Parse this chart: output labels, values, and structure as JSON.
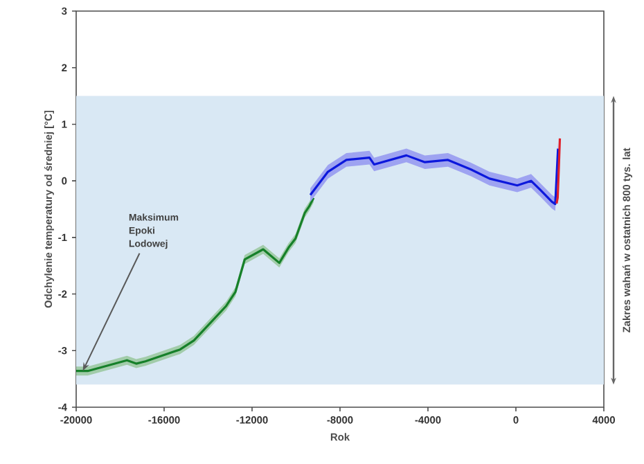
{
  "chart_data": {
    "type": "line",
    "xlabel": "Rok",
    "ylabel": "Odchylenie temperatury od średniej [°C]",
    "xlim": [
      -20000,
      4000
    ],
    "ylim": [
      -4,
      3
    ],
    "xticks": [
      -20000,
      -16000,
      -12000,
      -8000,
      -4000,
      0,
      4000
    ],
    "yticks": [
      -4,
      -3,
      -2,
      -1,
      0,
      1,
      2,
      3
    ],
    "bands": [
      {
        "axis": "y",
        "from": -3.6,
        "to": 1.5,
        "label": "Zakres wahań w ostatnich 800 tys. lat",
        "color": "#d9e8f4"
      }
    ],
    "annotations": [
      {
        "text": "Maksimum Epoki Lodowej",
        "x": -19700,
        "y": -3.36
      }
    ],
    "series": [
      {
        "color": "#16802a",
        "x": [
          -20000,
          -19475,
          -17690,
          -17270,
          -16850,
          -15275,
          -14645,
          -13175,
          -12755,
          -12335,
          -11495,
          -10760,
          -10340,
          -10025,
          -9605,
          -9400,
          -9200
        ],
        "values": [
          -3.36,
          -3.36,
          -3.17,
          -3.23,
          -3.19,
          -2.98,
          -2.82,
          -2.21,
          -1.96,
          -1.39,
          -1.21,
          -1.45,
          -1.18,
          -1.02,
          -0.57,
          -0.45,
          -0.3
        ],
        "lower": [
          -3.44,
          -3.44,
          -3.25,
          -3.31,
          -3.27,
          -3.06,
          -2.9,
          -2.29,
          -2.04,
          -1.47,
          -1.29,
          -1.53,
          -1.26,
          -1.1,
          -0.65,
          -0.53,
          -0.38
        ],
        "upper": [
          -3.28,
          -3.28,
          -3.09,
          -3.15,
          -3.11,
          -2.9,
          -2.74,
          -2.13,
          -1.88,
          -1.31,
          -1.13,
          -1.37,
          -1.1,
          -0.94,
          -0.49,
          -0.37,
          -0.22
        ]
      },
      {
        "color": "#0c18dc",
        "x": [
          -9350,
          -8550,
          -7710,
          -6660,
          -6450,
          -4980,
          -4140,
          -3090,
          -2040,
          -1200,
          60,
          690,
          1110,
          1640,
          1790,
          1915
        ],
        "values": [
          -0.25,
          0.16,
          0.37,
          0.41,
          0.29,
          0.45,
          0.33,
          0.37,
          0.2,
          0.04,
          -0.08,
          0.0,
          -0.16,
          -0.37,
          -0.41,
          0.57
        ],
        "lower": [
          -0.37,
          0.04,
          0.25,
          0.29,
          0.17,
          0.33,
          0.21,
          0.25,
          0.08,
          -0.08,
          -0.2,
          -0.12,
          -0.28,
          -0.49,
          -0.53,
          0.45
        ],
        "upper": [
          -0.13,
          0.28,
          0.49,
          0.53,
          0.41,
          0.57,
          0.45,
          0.49,
          0.32,
          0.16,
          0.04,
          0.12,
          -0.04,
          -0.25,
          -0.29,
          0.69
        ]
      },
      {
        "color": "#e0202a",
        "x": [
          1850,
          1900,
          1950,
          2000
        ],
        "values": [
          -0.4,
          -0.3,
          0.2,
          0.75
        ]
      }
    ]
  }
}
